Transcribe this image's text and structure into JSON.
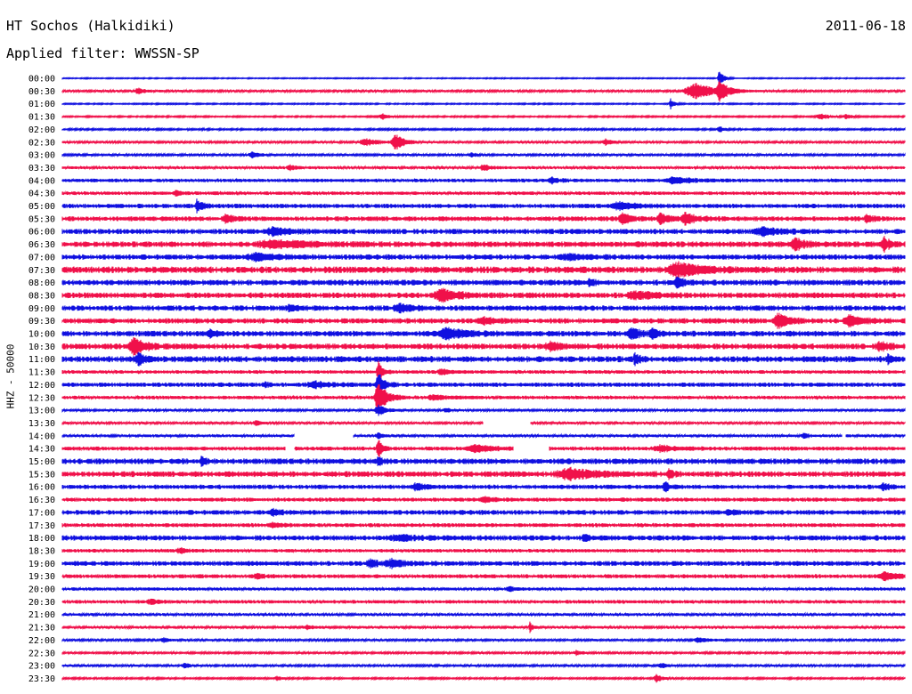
{
  "header": {
    "title": "HT Sochos (Halkidiki)",
    "date": "2011-06-18",
    "filter": "Applied filter: WWSSN-SP"
  },
  "chart_data": {
    "type": "line",
    "title": "HT Sochos (Halkidiki)",
    "subtitle": "Applied filter: WWSSN-SP",
    "date": "2011-06-18",
    "ylabel": "HHZ - 50000",
    "xlabel": "",
    "colors": {
      "odd": "#1010e0",
      "even": "#f0104a"
    },
    "rows": [
      {
        "label": "00:00",
        "noise": 0.5,
        "events": [
          {
            "x": 0.78,
            "a": 13,
            "w": 0.004
          }
        ]
      },
      {
        "label": "00:30",
        "noise": 1.0,
        "events": [
          {
            "x": 0.09,
            "a": 3,
            "w": 0.01
          },
          {
            "x": 0.75,
            "a": 9,
            "w": 0.025
          },
          {
            "x": 0.78,
            "a": 12,
            "w": 0.008
          }
        ]
      },
      {
        "label": "01:00",
        "noise": 0.6,
        "events": [
          {
            "x": 0.722,
            "a": 6,
            "w": 0.004
          }
        ]
      },
      {
        "label": "01:30",
        "noise": 0.7,
        "events": [
          {
            "x": 0.38,
            "a": 3,
            "w": 0.008
          },
          {
            "x": 0.9,
            "a": 3,
            "w": 0.01
          },
          {
            "x": 0.93,
            "a": 3,
            "w": 0.006
          }
        ]
      },
      {
        "label": "02:00",
        "noise": 0.8,
        "events": [
          {
            "x": 0.78,
            "a": 3,
            "w": 0.006
          }
        ]
      },
      {
        "label": "02:30",
        "noise": 1.0,
        "events": [
          {
            "x": 0.36,
            "a": 4,
            "w": 0.015
          },
          {
            "x": 0.395,
            "a": 9,
            "w": 0.01
          },
          {
            "x": 0.645,
            "a": 4,
            "w": 0.006
          }
        ]
      },
      {
        "label": "03:00",
        "noise": 1.0,
        "events": [
          {
            "x": 0.225,
            "a": 4,
            "w": 0.008
          },
          {
            "x": 0.485,
            "a": 3,
            "w": 0.006
          }
        ]
      },
      {
        "label": "03:30",
        "noise": 1.3,
        "events": [
          {
            "x": 0.27,
            "a": 3,
            "w": 0.008
          },
          {
            "x": 0.5,
            "a": 3,
            "w": 0.01
          }
        ]
      },
      {
        "label": "04:00",
        "noise": 1.6,
        "events": [
          {
            "x": 0.725,
            "a": 4,
            "w": 0.02
          },
          {
            "x": 0.58,
            "a": 3,
            "w": 0.01
          }
        ]
      },
      {
        "label": "04:30",
        "noise": 1.6,
        "events": [
          {
            "x": 0.135,
            "a": 3,
            "w": 0.006
          }
        ]
      },
      {
        "label": "05:00",
        "noise": 2.0,
        "events": [
          {
            "x": 0.16,
            "a": 8,
            "w": 0.005
          },
          {
            "x": 0.66,
            "a": 4,
            "w": 0.02
          }
        ]
      },
      {
        "label": "05:30",
        "noise": 2.2,
        "events": [
          {
            "x": 0.195,
            "a": 5,
            "w": 0.008
          },
          {
            "x": 0.665,
            "a": 6,
            "w": 0.01
          },
          {
            "x": 0.71,
            "a": 6,
            "w": 0.008
          },
          {
            "x": 0.74,
            "a": 7,
            "w": 0.012
          },
          {
            "x": 0.955,
            "a": 5,
            "w": 0.006
          }
        ]
      },
      {
        "label": "06:00",
        "noise": 2.4,
        "events": [
          {
            "x": 0.25,
            "a": 4,
            "w": 0.02
          },
          {
            "x": 0.83,
            "a": 4,
            "w": 0.02
          }
        ]
      },
      {
        "label": "06:30",
        "noise": 2.6,
        "events": [
          {
            "x": 0.25,
            "a": 4,
            "w": 0.04
          },
          {
            "x": 0.87,
            "a": 7,
            "w": 0.01
          },
          {
            "x": 0.975,
            "a": 9,
            "w": 0.006
          }
        ]
      },
      {
        "label": "07:00",
        "noise": 2.4,
        "events": [
          {
            "x": 0.23,
            "a": 4,
            "w": 0.02
          },
          {
            "x": 0.6,
            "a": 3,
            "w": 0.02
          }
        ]
      },
      {
        "label": "07:30",
        "noise": 3.0,
        "events": [
          {
            "x": 0.73,
            "a": 8,
            "w": 0.025
          }
        ]
      },
      {
        "label": "08:00",
        "noise": 2.6,
        "events": [
          {
            "x": 0.625,
            "a": 4,
            "w": 0.006
          },
          {
            "x": 0.73,
            "a": 5,
            "w": 0.008
          }
        ]
      },
      {
        "label": "08:30",
        "noise": 2.6,
        "events": [
          {
            "x": 0.45,
            "a": 7,
            "w": 0.018
          },
          {
            "x": 0.68,
            "a": 4,
            "w": 0.02
          }
        ]
      },
      {
        "label": "09:00",
        "noise": 2.4,
        "events": [
          {
            "x": 0.4,
            "a": 4,
            "w": 0.015
          },
          {
            "x": 0.27,
            "a": 3,
            "w": 0.01
          }
        ]
      },
      {
        "label": "09:30",
        "noise": 2.4,
        "events": [
          {
            "x": 0.5,
            "a": 4,
            "w": 0.012
          },
          {
            "x": 0.85,
            "a": 8,
            "w": 0.012
          },
          {
            "x": 0.935,
            "a": 6,
            "w": 0.015
          }
        ]
      },
      {
        "label": "10:00",
        "noise": 2.6,
        "events": [
          {
            "x": 0.175,
            "a": 4,
            "w": 0.006
          },
          {
            "x": 0.455,
            "a": 6,
            "w": 0.02
          },
          {
            "x": 0.675,
            "a": 6,
            "w": 0.01
          },
          {
            "x": 0.7,
            "a": 5,
            "w": 0.008
          }
        ]
      },
      {
        "label": "10:30",
        "noise": 2.6,
        "events": [
          {
            "x": 0.085,
            "a": 10,
            "w": 0.012
          },
          {
            "x": 0.58,
            "a": 4,
            "w": 0.015
          },
          {
            "x": 0.97,
            "a": 5,
            "w": 0.01
          }
        ]
      },
      {
        "label": "11:00",
        "noise": 2.8,
        "events": [
          {
            "x": 0.09,
            "a": 8,
            "w": 0.005
          },
          {
            "x": 0.68,
            "a": 7,
            "w": 0.004
          },
          {
            "x": 0.98,
            "a": 5,
            "w": 0.004
          }
        ]
      },
      {
        "label": "11:30",
        "noise": 1.6,
        "events": [
          {
            "x": 0.375,
            "a": 14,
            "w": 0.004
          },
          {
            "x": 0.45,
            "a": 3,
            "w": 0.01
          }
        ]
      },
      {
        "label": "12:00",
        "noise": 2.0,
        "events": [
          {
            "x": 0.24,
            "a": 4,
            "w": 0.004
          },
          {
            "x": 0.375,
            "a": 16,
            "w": 0.006
          },
          {
            "x": 0.3,
            "a": 3,
            "w": 0.02
          }
        ]
      },
      {
        "label": "12:30",
        "noise": 1.6,
        "events": [
          {
            "x": 0.375,
            "a": 16,
            "w": 0.01
          },
          {
            "x": 0.44,
            "a": 3,
            "w": 0.015
          }
        ]
      },
      {
        "label": "13:00",
        "noise": 1.0,
        "events": [
          {
            "x": 0.375,
            "a": 6,
            "w": 0.01
          },
          {
            "x": 0.455,
            "a": 3,
            "w": 0.006
          }
        ]
      },
      {
        "label": "13:30",
        "noise": 1.1,
        "events": [
          {
            "x": 0.23,
            "a": 3,
            "w": 0.006
          }
        ],
        "gaps": [
          [
            0.5,
            0.555
          ]
        ]
      },
      {
        "label": "14:00",
        "noise": 1.2,
        "events": [
          {
            "x": 0.375,
            "a": 3,
            "w": 0.006
          },
          {
            "x": 0.88,
            "a": 3,
            "w": 0.006
          }
        ],
        "gaps": [
          [
            0.275,
            0.345
          ],
          [
            0.925,
            0.93
          ]
        ]
      },
      {
        "label": "14:30",
        "noise": 1.8,
        "events": [
          {
            "x": 0.375,
            "a": 12,
            "w": 0.004
          },
          {
            "x": 0.49,
            "a": 4,
            "w": 0.02
          },
          {
            "x": 0.71,
            "a": 3,
            "w": 0.02
          }
        ],
        "gaps": [
          [
            0.265,
            0.275
          ],
          [
            0.535,
            0.578
          ]
        ]
      },
      {
        "label": "15:00",
        "noise": 2.6,
        "events": [
          {
            "x": 0.165,
            "a": 4,
            "w": 0.005
          },
          {
            "x": 0.375,
            "a": 5,
            "w": 0.004
          }
        ]
      },
      {
        "label": "15:30",
        "noise": 2.6,
        "events": [
          {
            "x": 0.6,
            "a": 6,
            "w": 0.03
          },
          {
            "x": 0.72,
            "a": 5,
            "w": 0.005
          }
        ]
      },
      {
        "label": "16:00",
        "noise": 2.0,
        "events": [
          {
            "x": 0.42,
            "a": 4,
            "w": 0.008
          },
          {
            "x": 0.715,
            "a": 6,
            "w": 0.005
          },
          {
            "x": 0.975,
            "a": 4,
            "w": 0.006
          }
        ]
      },
      {
        "label": "16:30",
        "noise": 1.8,
        "events": [
          {
            "x": 0.5,
            "a": 3,
            "w": 0.01
          }
        ]
      },
      {
        "label": "17:00",
        "noise": 2.2,
        "events": [
          {
            "x": 0.25,
            "a": 3,
            "w": 0.008
          },
          {
            "x": 0.79,
            "a": 3,
            "w": 0.008
          }
        ]
      },
      {
        "label": "17:30",
        "noise": 1.8,
        "events": [
          {
            "x": 0.25,
            "a": 3,
            "w": 0.008
          }
        ]
      },
      {
        "label": "18:00",
        "noise": 2.4,
        "events": [
          {
            "x": 0.62,
            "a": 4,
            "w": 0.005
          },
          {
            "x": 0.4,
            "a": 3,
            "w": 0.02
          }
        ]
      },
      {
        "label": "18:30",
        "noise": 1.6,
        "events": [
          {
            "x": 0.14,
            "a": 3,
            "w": 0.008
          }
        ]
      },
      {
        "label": "19:00",
        "noise": 2.2,
        "events": [
          {
            "x": 0.365,
            "a": 5,
            "w": 0.008
          },
          {
            "x": 0.39,
            "a": 4,
            "w": 0.015
          }
        ]
      },
      {
        "label": "19:30",
        "noise": 1.8,
        "events": [
          {
            "x": 0.23,
            "a": 3,
            "w": 0.006
          },
          {
            "x": 0.975,
            "a": 6,
            "w": 0.012
          }
        ]
      },
      {
        "label": "20:00",
        "noise": 1.4,
        "events": [
          {
            "x": 0.53,
            "a": 3,
            "w": 0.006
          }
        ]
      },
      {
        "label": "20:30",
        "noise": 1.6,
        "events": [
          {
            "x": 0.105,
            "a": 3,
            "w": 0.008
          }
        ]
      },
      {
        "label": "21:00",
        "noise": 1.2,
        "events": []
      },
      {
        "label": "21:30",
        "noise": 1.2,
        "events": [
          {
            "x": 0.555,
            "a": 6,
            "w": 0.003
          },
          {
            "x": 0.29,
            "a": 3,
            "w": 0.008
          }
        ]
      },
      {
        "label": "22:00",
        "noise": 1.0,
        "events": [
          {
            "x": 0.12,
            "a": 3,
            "w": 0.006
          },
          {
            "x": 0.755,
            "a": 3,
            "w": 0.01
          }
        ]
      },
      {
        "label": "22:30",
        "noise": 0.9,
        "events": [
          {
            "x": 0.61,
            "a": 3,
            "w": 0.006
          }
        ]
      },
      {
        "label": "23:00",
        "noise": 1.0,
        "events": [
          {
            "x": 0.145,
            "a": 3,
            "w": 0.006
          },
          {
            "x": 0.71,
            "a": 3,
            "w": 0.008
          }
        ]
      },
      {
        "label": "23:30",
        "noise": 0.8,
        "events": [
          {
            "x": 0.255,
            "a": 3,
            "w": 0.004
          },
          {
            "x": 0.705,
            "a": 5,
            "w": 0.006
          }
        ]
      }
    ]
  }
}
